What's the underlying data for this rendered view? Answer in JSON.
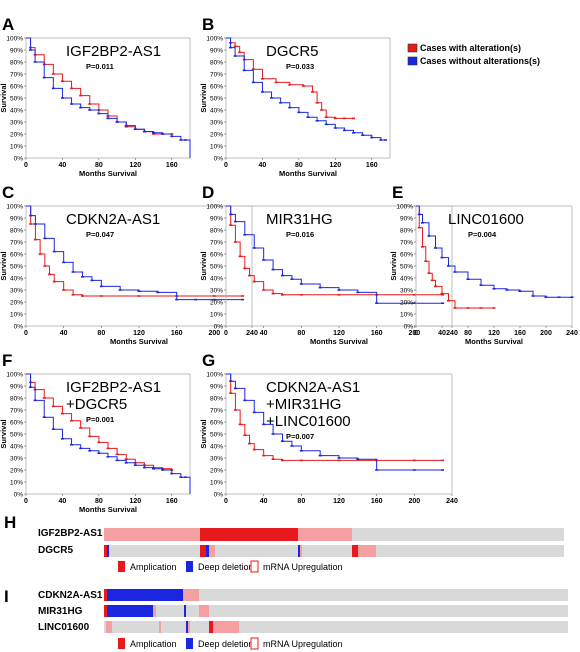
{
  "legend": {
    "items": [
      {
        "label": "Cases with alteration(s)",
        "color": "#e8191c"
      },
      {
        "label": "Cases without alterations(s)",
        "color": "#1a26e0"
      }
    ]
  },
  "colors": {
    "with": "#e8191c",
    "without": "#1a26e0",
    "with_light": "#f08a8c",
    "without_light": "#8a8ff0"
  },
  "chart_data": [
    {
      "type": "line",
      "panel": "A",
      "gene": "IGF2BP2-AS1",
      "pvalue": "P=0.011",
      "xlabel": "Months Survival",
      "ylabel": "Survival",
      "xlim": [
        0,
        180
      ],
      "ylim": [
        0,
        100
      ],
      "x_ticks": [
        "0",
        "40",
        "80",
        "120",
        "160"
      ],
      "y_ticks": [
        "0%",
        "10%",
        "20%",
        "30%",
        "40%",
        "50%",
        "60%",
        "70%",
        "80%",
        "90%",
        "100%"
      ],
      "series": [
        {
          "key": "with",
          "x": [
            0,
            5,
            10,
            20,
            30,
            40,
            50,
            60,
            70,
            80,
            90,
            100,
            110,
            120,
            130,
            140,
            150,
            160
          ],
          "y": [
            100,
            92,
            86,
            78,
            70,
            64,
            58,
            52,
            45,
            40,
            35,
            30,
            26,
            24,
            22,
            20,
            20,
            20
          ]
        },
        {
          "key": "without",
          "x": [
            0,
            5,
            10,
            20,
            30,
            40,
            50,
            60,
            70,
            80,
            90,
            100,
            110,
            120,
            130,
            140,
            150,
            160,
            170,
            175,
            180
          ],
          "y": [
            100,
            90,
            80,
            67,
            58,
            50,
            45,
            42,
            40,
            37,
            33,
            30,
            27,
            24,
            22,
            21,
            20,
            18,
            15,
            15,
            0
          ]
        }
      ]
    },
    {
      "type": "line",
      "panel": "B",
      "gene": "DGCR5",
      "pvalue": "P=0.033",
      "xlabel": "Months Survival",
      "ylabel": "Survival",
      "xlim": [
        0,
        180
      ],
      "ylim": [
        0,
        100
      ],
      "x_ticks": [
        "0",
        "40",
        "80",
        "120",
        "160"
      ],
      "y_ticks": [
        "0%",
        "10%",
        "20%",
        "30%",
        "40%",
        "50%",
        "60%",
        "70%",
        "80%",
        "90%",
        "100%"
      ],
      "series": [
        {
          "key": "with",
          "x": [
            0,
            5,
            10,
            15,
            20,
            30,
            40,
            55,
            70,
            85,
            95,
            100,
            105,
            110,
            120,
            130,
            140
          ],
          "y": [
            100,
            96,
            93,
            88,
            82,
            74,
            66,
            63,
            61,
            60,
            55,
            46,
            40,
            34,
            33,
            33,
            33
          ]
        },
        {
          "key": "without",
          "x": [
            0,
            5,
            10,
            20,
            30,
            40,
            50,
            60,
            70,
            80,
            90,
            100,
            110,
            120,
            130,
            140,
            150,
            160,
            170,
            175
          ],
          "y": [
            100,
            92,
            85,
            73,
            63,
            55,
            50,
            46,
            42,
            38,
            34,
            31,
            28,
            25,
            23,
            21,
            19,
            17,
            15,
            15
          ]
        }
      ]
    },
    {
      "type": "line",
      "panel": "C",
      "gene": "CDKN2A-AS1",
      "pvalue": "P=0.047",
      "xlabel": "Months Survival",
      "ylabel": "Survival",
      "xlim": [
        0,
        240
      ],
      "ylim": [
        0,
        100
      ],
      "x_ticks": [
        "0",
        "40",
        "80",
        "120",
        "160",
        "200",
        "240"
      ],
      "y_ticks": [
        "0%",
        "10%",
        "20%",
        "30%",
        "40%",
        "50%",
        "60%",
        "70%",
        "80%",
        "90%",
        "100%"
      ],
      "series": [
        {
          "key": "with",
          "x": [
            0,
            5,
            10,
            15,
            20,
            25,
            30,
            40,
            50,
            60,
            80,
            120,
            160,
            200,
            230
          ],
          "y": [
            100,
            85,
            72,
            60,
            50,
            43,
            37,
            30,
            26,
            25,
            25,
            25,
            25,
            25,
            25
          ]
        },
        {
          "key": "without",
          "x": [
            0,
            5,
            10,
            20,
            30,
            40,
            50,
            60,
            70,
            80,
            100,
            120,
            140,
            160,
            180,
            200,
            230
          ],
          "y": [
            100,
            92,
            85,
            73,
            62,
            53,
            45,
            41,
            38,
            33,
            30,
            29,
            28,
            22,
            22,
            22,
            22
          ]
        }
      ]
    },
    {
      "type": "line",
      "panel": "D",
      "gene": "MIR31HG",
      "pvalue": "P=0.016",
      "xlabel": "Months Survival",
      "ylabel": "Survival",
      "xlim": [
        0,
        240
      ],
      "ylim": [
        0,
        100
      ],
      "x_ticks": [
        "0",
        "40",
        "80",
        "120",
        "160",
        "200",
        "240"
      ],
      "y_ticks": [
        "0%",
        "10%",
        "20%",
        "30%",
        "40%",
        "50%",
        "60%",
        "70%",
        "80%",
        "90%",
        "100%"
      ],
      "series": [
        {
          "key": "with",
          "x": [
            0,
            5,
            10,
            15,
            20,
            25,
            30,
            40,
            50,
            60,
            80,
            120,
            160,
            200,
            230
          ],
          "y": [
            100,
            84,
            70,
            58,
            48,
            42,
            37,
            30,
            27,
            26,
            26,
            26,
            26,
            26,
            26
          ]
        },
        {
          "key": "without",
          "x": [
            0,
            5,
            10,
            20,
            30,
            40,
            50,
            60,
            70,
            80,
            100,
            120,
            140,
            160,
            200,
            230
          ],
          "y": [
            100,
            93,
            87,
            76,
            65,
            55,
            47,
            42,
            39,
            35,
            32,
            30,
            28,
            19,
            19,
            19
          ]
        }
      ]
    },
    {
      "type": "line",
      "panel": "E",
      "gene": "LINC01600",
      "pvalue": "P=0.004",
      "xlabel": "Months Survival",
      "ylabel": "Survival",
      "xlim": [
        0,
        240
      ],
      "ylim": [
        0,
        100
      ],
      "x_ticks": [
        "0",
        "40",
        "80",
        "120",
        "160",
        "200",
        "240"
      ],
      "y_ticks": [
        "0%",
        "10%",
        "20%",
        "30%",
        "40%",
        "50%",
        "60%",
        "70%",
        "80%",
        "90%",
        "100%"
      ],
      "series": [
        {
          "key": "with",
          "x": [
            0,
            5,
            10,
            15,
            20,
            25,
            30,
            40,
            50,
            60,
            80,
            100,
            120
          ],
          "y": [
            100,
            82,
            66,
            54,
            44,
            38,
            33,
            27,
            21,
            15,
            15,
            15,
            15
          ]
        },
        {
          "key": "without",
          "x": [
            0,
            5,
            10,
            20,
            30,
            40,
            50,
            60,
            80,
            100,
            120,
            140,
            160,
            180,
            200,
            220,
            240
          ],
          "y": [
            100,
            93,
            86,
            75,
            65,
            57,
            50,
            45,
            39,
            34,
            31,
            30,
            29,
            25,
            24,
            24,
            24
          ]
        }
      ]
    },
    {
      "type": "line",
      "panel": "F",
      "gene": "IGF2BP2-AS1\n+DGCR5",
      "pvalue": "P=0.001",
      "xlabel": "Months Survival",
      "ylabel": "Survival",
      "xlim": [
        0,
        180
      ],
      "ylim": [
        0,
        100
      ],
      "x_ticks": [
        "0",
        "40",
        "80",
        "120",
        "160"
      ],
      "y_ticks": [
        "0%",
        "10%",
        "20%",
        "30%",
        "40%",
        "50%",
        "60%",
        "70%",
        "80%",
        "90%",
        "100%"
      ],
      "series": [
        {
          "key": "with",
          "x": [
            0,
            5,
            10,
            20,
            30,
            40,
            50,
            60,
            70,
            80,
            90,
            100,
            110,
            120,
            130,
            140,
            150,
            160
          ],
          "y": [
            100,
            93,
            87,
            80,
            73,
            67,
            61,
            55,
            48,
            43,
            38,
            33,
            29,
            26,
            24,
            22,
            21,
            20
          ]
        },
        {
          "key": "without",
          "x": [
            0,
            5,
            10,
            20,
            30,
            40,
            50,
            60,
            70,
            80,
            90,
            100,
            110,
            120,
            130,
            140,
            150,
            160,
            170,
            175,
            180
          ],
          "y": [
            100,
            89,
            78,
            64,
            54,
            46,
            41,
            38,
            36,
            34,
            31,
            28,
            26,
            24,
            22,
            21,
            20,
            17,
            14,
            14,
            0
          ]
        }
      ]
    },
    {
      "type": "line",
      "panel": "G",
      "gene": "CDKN2A-AS1\n+MIR31HG\n+LINC01600",
      "pvalue": "P=0.007",
      "xlabel": "",
      "ylabel": "Survival",
      "xlim": [
        0,
        240
      ],
      "ylim": [
        0,
        100
      ],
      "x_ticks": [
        "0",
        "40",
        "80",
        "120",
        "160",
        "200",
        "240"
      ],
      "y_ticks": [
        "0%",
        "10%",
        "20%",
        "30%",
        "40%",
        "50%",
        "60%",
        "70%",
        "80%",
        "90%",
        "100%"
      ],
      "series": [
        {
          "key": "with",
          "x": [
            0,
            5,
            10,
            15,
            20,
            25,
            30,
            40,
            50,
            60,
            80,
            120,
            160,
            200,
            230
          ],
          "y": [
            100,
            84,
            70,
            58,
            49,
            42,
            37,
            32,
            29,
            28,
            28,
            28,
            28,
            28,
            28
          ]
        },
        {
          "key": "without",
          "x": [
            0,
            5,
            10,
            20,
            30,
            40,
            50,
            60,
            70,
            80,
            100,
            120,
            140,
            160,
            200,
            230
          ],
          "y": [
            100,
            94,
            88,
            78,
            68,
            58,
            50,
            44,
            40,
            36,
            32,
            30,
            29,
            20,
            20,
            20
          ]
        }
      ]
    }
  ],
  "oncoprint_H": {
    "label": "H",
    "tracks": [
      "IGF2BP2-AS1",
      "DGCR5"
    ],
    "legend": [
      "Amplication",
      "Deep deletion",
      "mRNA Upregulation"
    ]
  },
  "oncoprint_I": {
    "label": "I",
    "tracks": [
      "CDKN2A-AS1",
      "MIR31HG",
      "LINC01600"
    ],
    "legend": [
      "Amplication",
      "Deep deletion",
      "mRNA Upregulation"
    ]
  }
}
